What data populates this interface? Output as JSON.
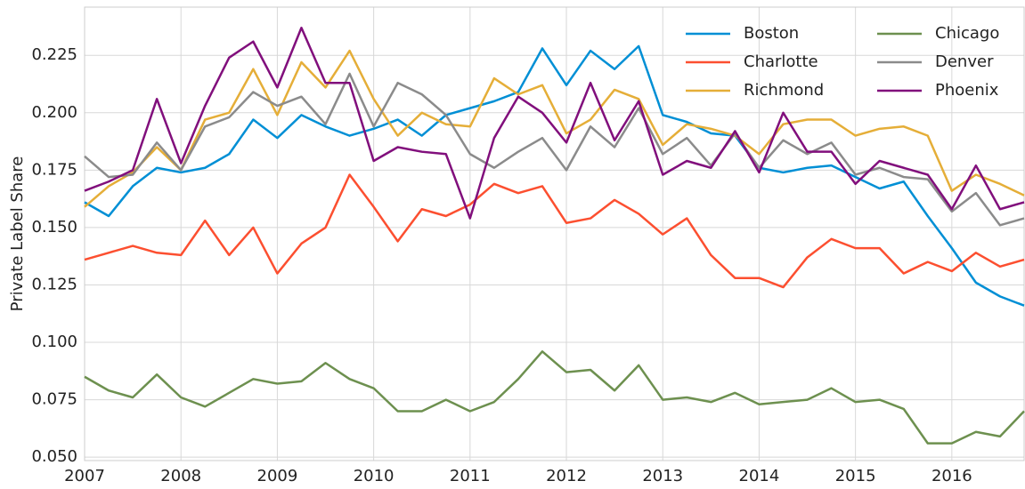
{
  "chart_data": {
    "type": "line",
    "y_label": "Private Label Share",
    "x": [
      2007,
      2007.25,
      2007.5,
      2007.75,
      2008,
      2008.25,
      2008.5,
      2008.75,
      2009,
      2009.25,
      2009.5,
      2009.75,
      2010,
      2010.25,
      2010.5,
      2010.75,
      2011,
      2011.25,
      2011.5,
      2011.75,
      2012,
      2012.25,
      2012.5,
      2012.75,
      2013,
      2013.25,
      2013.5,
      2013.75,
      2014,
      2014.25,
      2014.5,
      2014.75,
      2015,
      2015.25,
      2015.5,
      2015.75,
      2016,
      2016.25,
      2016.5,
      2016.75
    ],
    "series": [
      {
        "name": "Boston",
        "color": "#008fd5",
        "values": [
          0.161,
          0.155,
          0.168,
          0.176,
          0.174,
          0.176,
          0.182,
          0.197,
          0.189,
          0.199,
          0.194,
          0.19,
          0.193,
          0.197,
          0.19,
          0.199,
          0.202,
          0.205,
          0.209,
          0.228,
          0.212,
          0.227,
          0.219,
          0.229,
          0.199,
          0.196,
          0.191,
          0.19,
          0.176,
          0.174,
          0.176,
          0.177,
          0.172,
          0.167,
          0.17,
          0.155,
          0.141,
          0.126,
          0.12,
          0.116
        ]
      },
      {
        "name": "Charlotte",
        "color": "#fc4f30",
        "values": [
          0.136,
          0.139,
          0.142,
          0.139,
          0.138,
          0.153,
          0.138,
          0.15,
          0.13,
          0.143,
          0.15,
          0.173,
          0.159,
          0.144,
          0.158,
          0.155,
          0.16,
          0.169,
          0.165,
          0.168,
          0.152,
          0.154,
          0.162,
          0.156,
          0.147,
          0.154,
          0.138,
          0.128,
          0.128,
          0.124,
          0.137,
          0.145,
          0.141,
          0.141,
          0.13,
          0.135,
          0.131,
          0.139,
          0.133,
          0.136
        ]
      },
      {
        "name": "Richmond",
        "color": "#e5ae38",
        "values": [
          0.159,
          0.168,
          0.174,
          0.185,
          0.175,
          0.197,
          0.2,
          0.219,
          0.199,
          0.222,
          0.211,
          0.227,
          0.206,
          0.19,
          0.2,
          0.195,
          0.194,
          0.215,
          0.208,
          0.212,
          0.191,
          0.197,
          0.21,
          0.206,
          0.186,
          0.195,
          0.193,
          0.19,
          0.182,
          0.195,
          0.197,
          0.197,
          0.19,
          0.193,
          0.194,
          0.19,
          0.166,
          0.173,
          0.169,
          0.164
        ]
      },
      {
        "name": "Chicago",
        "color": "#6d904f",
        "values": [
          0.085,
          0.079,
          0.076,
          0.086,
          0.076,
          0.072,
          0.078,
          0.084,
          0.082,
          0.083,
          0.091,
          0.084,
          0.08,
          0.07,
          0.07,
          0.075,
          0.07,
          0.074,
          0.084,
          0.096,
          0.087,
          0.088,
          0.079,
          0.09,
          0.075,
          0.076,
          0.074,
          0.078,
          0.073,
          0.074,
          0.075,
          0.08,
          0.074,
          0.075,
          0.071,
          0.056,
          0.056,
          0.061,
          0.059,
          0.07
        ]
      },
      {
        "name": "Denver",
        "color": "#8b8b8b",
        "values": [
          0.181,
          0.172,
          0.173,
          0.187,
          0.175,
          0.194,
          0.198,
          0.209,
          0.203,
          0.207,
          0.195,
          0.217,
          0.194,
          0.213,
          0.208,
          0.199,
          0.182,
          0.176,
          0.183,
          0.189,
          0.175,
          0.194,
          0.185,
          0.202,
          0.182,
          0.189,
          0.177,
          0.191,
          0.176,
          0.188,
          0.182,
          0.187,
          0.173,
          0.176,
          0.172,
          0.171,
          0.157,
          0.165,
          0.151,
          0.154
        ]
      },
      {
        "name": "Phoenix",
        "color": "#810f7c",
        "values": [
          0.166,
          0.17,
          0.175,
          0.206,
          0.178,
          0.203,
          0.224,
          0.231,
          0.211,
          0.237,
          0.213,
          0.213,
          0.179,
          0.185,
          0.183,
          0.182,
          0.154,
          0.189,
          0.207,
          0.2,
          0.187,
          0.213,
          0.188,
          0.205,
          0.173,
          0.179,
          0.176,
          0.192,
          0.174,
          0.2,
          0.183,
          0.183,
          0.169,
          0.179,
          0.176,
          0.173,
          0.158,
          0.177,
          0.158,
          0.161
        ]
      }
    ],
    "xlim": [
      2007,
      2016.75
    ],
    "ylim": [
      0.0485,
      0.246
    ],
    "xticks": [
      2007,
      2008,
      2009,
      2010,
      2011,
      2012,
      2013,
      2014,
      2015,
      2016
    ],
    "yticks": [
      {
        "value": 0.05,
        "label": "0.050"
      },
      {
        "value": 0.075,
        "label": "0.075"
      },
      {
        "value": 0.1,
        "label": "0.100"
      },
      {
        "value": 0.125,
        "label": "0.125"
      },
      {
        "value": 0.15,
        "label": "0.150"
      },
      {
        "value": 0.175,
        "label": "0.175"
      },
      {
        "value": 0.2,
        "label": "0.200"
      },
      {
        "value": 0.225,
        "label": "0.225"
      }
    ],
    "grid": true,
    "legend": "upper-right"
  }
}
